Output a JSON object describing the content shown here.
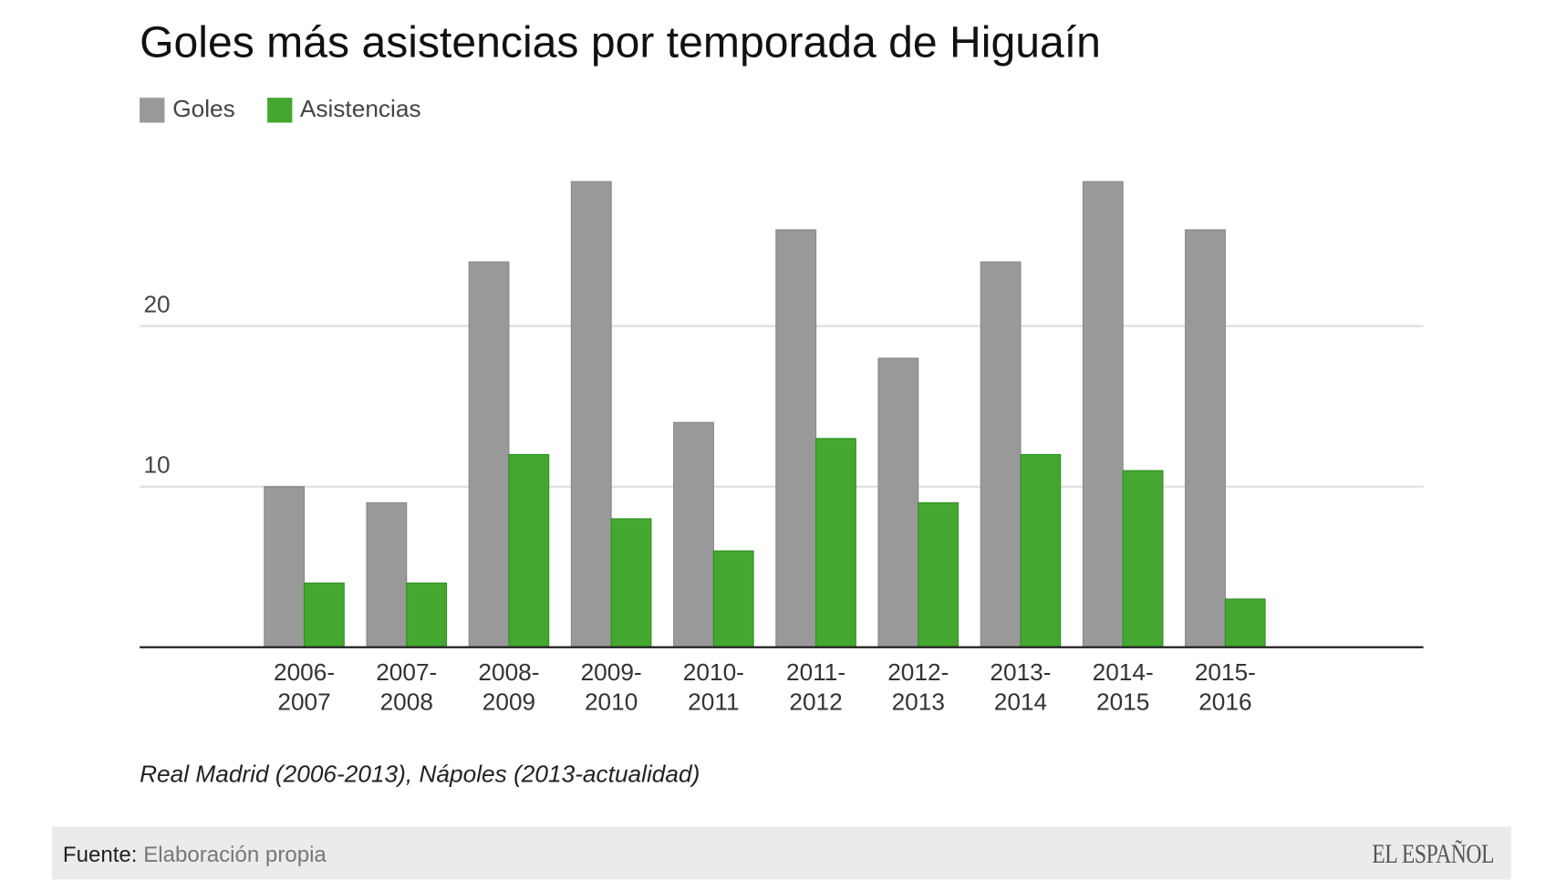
{
  "chart_data": {
    "type": "bar",
    "title": "Goles más asistencias por temporada de Higuaín",
    "categories": [
      [
        "2006-",
        "2007"
      ],
      [
        "2007-",
        "2008"
      ],
      [
        "2008-",
        "2009"
      ],
      [
        "2009-",
        "2010"
      ],
      [
        "2010-",
        "2011"
      ],
      [
        "2011-",
        "2012"
      ],
      [
        "2012-",
        "2013"
      ],
      [
        "2013-",
        "2014"
      ],
      [
        "2014-",
        "2015"
      ],
      [
        "2015-",
        "2016"
      ]
    ],
    "series": [
      {
        "name": "Goles",
        "color": "#999999",
        "values": [
          10,
          9,
          24,
          29,
          14,
          26,
          18,
          24,
          29,
          26
        ]
      },
      {
        "name": "Asistencias",
        "color": "#44a830",
        "values": [
          4,
          4,
          12,
          8,
          6,
          13,
          9,
          12,
          11,
          3
        ]
      }
    ],
    "yticks": [
      10,
      20
    ],
    "ylim": [
      0,
      30
    ],
    "grid": true,
    "legend": "top-left",
    "xlabel": "",
    "ylabel": ""
  },
  "note": "Real Madrid (2006-2013), Nápoles (2013-actualidad)",
  "footer": {
    "source_label": "Fuente:",
    "source_value": "Elaboración propia",
    "logo": "EL ESPAÑOL"
  }
}
